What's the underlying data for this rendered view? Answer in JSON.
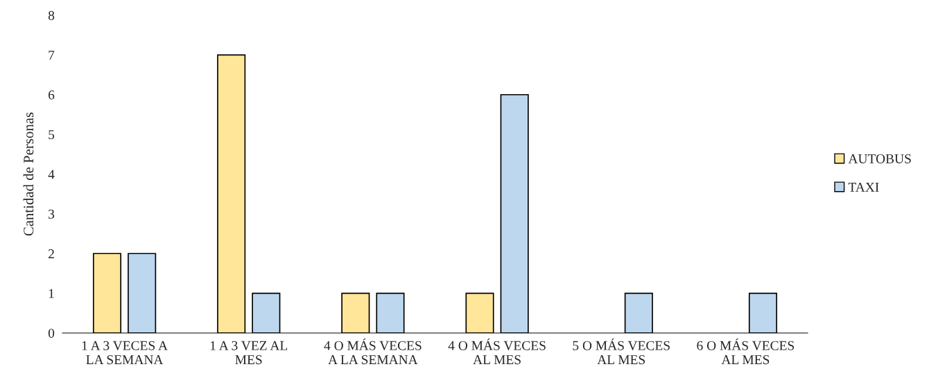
{
  "chart_data": {
    "type": "bar",
    "ylabel": "Cantidad de Personas",
    "categories": [
      "1 A 3 VECES A\nLA SEMANA",
      "1 A 3 VEZ AL\nMES",
      "4 O MÁS VECES\nA LA SEMANA",
      "4 O MÁS VECES\nAL MES",
      "5 O MÁS VECES\nAL MES",
      "6 O MÁS VECES\nAL MES"
    ],
    "series": [
      {
        "name": "AUTOBUS",
        "color": "#ffe699",
        "values": [
          2,
          7,
          1,
          1,
          null,
          null
        ]
      },
      {
        "name": "TAXI",
        "color": "#bdd7ee",
        "values": [
          2,
          1,
          1,
          6,
          1,
          1
        ]
      }
    ],
    "ylim": [
      0,
      8
    ],
    "yticks": [
      0,
      1,
      2,
      3,
      4,
      5,
      6,
      7,
      8
    ],
    "grid": false,
    "legend": "right"
  }
}
